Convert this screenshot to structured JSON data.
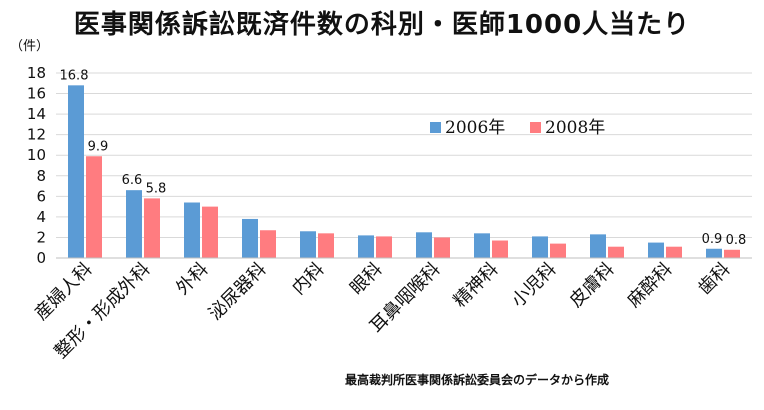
{
  "chart_data": {
    "type": "bar",
    "title": "医事関係訴訟既済件数の科別・医師1000人当たり",
    "y_unit_label": "（件）",
    "ylim": [
      0,
      18
    ],
    "yticks": [
      0,
      2,
      4,
      6,
      8,
      10,
      12,
      14,
      16,
      18
    ],
    "grid": true,
    "legend_position": "top-right",
    "categories": [
      "産婦人科",
      "整形・形成外科",
      "外科",
      "泌尿器科",
      "内科",
      "眼科",
      "耳鼻咽喉科",
      "精神科",
      "小児科",
      "皮膚科",
      "麻酔科",
      "歯科"
    ],
    "series": [
      {
        "name": "2006年",
        "color": "#5b9bd5",
        "values": [
          16.8,
          6.6,
          5.4,
          3.8,
          2.6,
          2.2,
          2.5,
          2.4,
          2.1,
          2.3,
          1.5,
          0.9
        ],
        "data_labels": [
          "16.8",
          "6.6",
          null,
          null,
          null,
          null,
          null,
          null,
          null,
          null,
          null,
          "0.9"
        ]
      },
      {
        "name": "2008年",
        "color": "#ff7c80",
        "values": [
          9.9,
          5.8,
          5.0,
          2.7,
          2.4,
          2.1,
          2.0,
          1.7,
          1.4,
          1.1,
          1.1,
          0.8
        ],
        "data_labels": [
          "9.9",
          "5.8",
          null,
          null,
          null,
          null,
          null,
          null,
          null,
          null,
          null,
          "0.8"
        ]
      }
    ]
  },
  "source_note": "最高裁判所医事関係訴訟委員会のデータから作成"
}
